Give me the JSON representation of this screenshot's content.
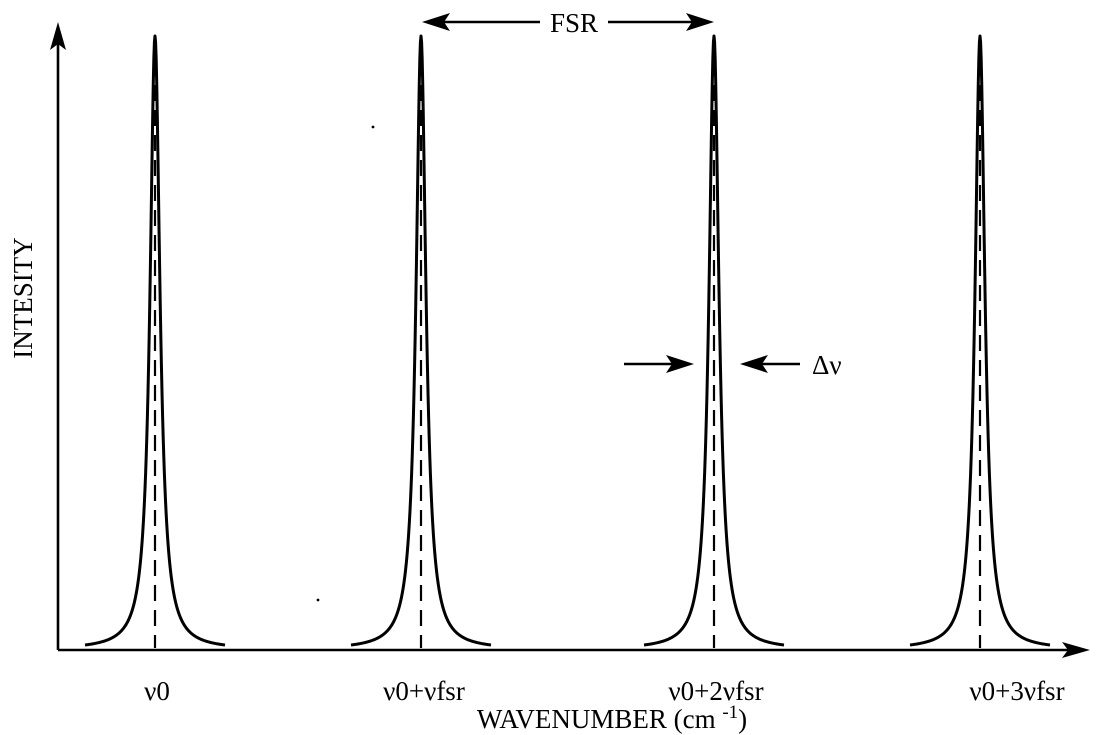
{
  "diagram": {
    "axes": {
      "y_label": "INTESITY",
      "x_label": "WAVENUMBER (cm ",
      "x_label_exponent": "-1",
      "x_label_close": ")"
    },
    "peaks": [
      {
        "label": "ν0"
      },
      {
        "label": "ν0+νfsr"
      },
      {
        "label": "ν0+2νfsr"
      },
      {
        "label": "ν0+3νfsr"
      }
    ],
    "annotations": {
      "fsr": "FSR",
      "linewidth": "Δν"
    }
  }
}
